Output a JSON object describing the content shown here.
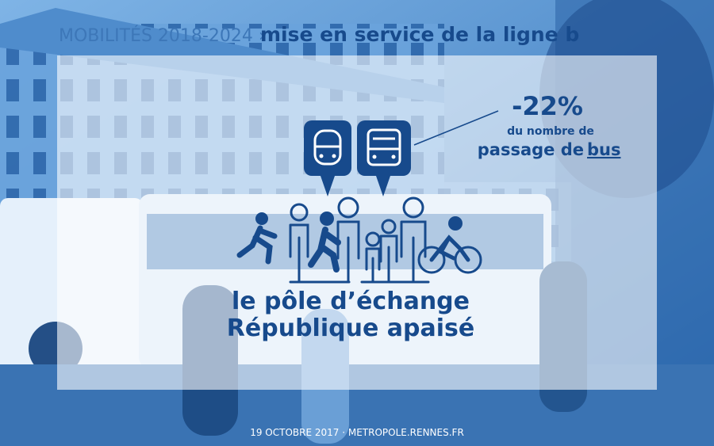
{
  "header": {
    "kicker": "MOBILITÉS 2018-2024 ›",
    "title": "mise en service de la ligne b"
  },
  "callout": {
    "figure": "-22%",
    "line1": "du nombre de",
    "line2": "passage de",
    "line2_emphasis": "bus"
  },
  "headline": {
    "line1": "le pôle d’échange",
    "line2": "République apaisé"
  },
  "footer": "19 OCTOBRE 2017 · METROPOLE.RENNES.FR"
}
